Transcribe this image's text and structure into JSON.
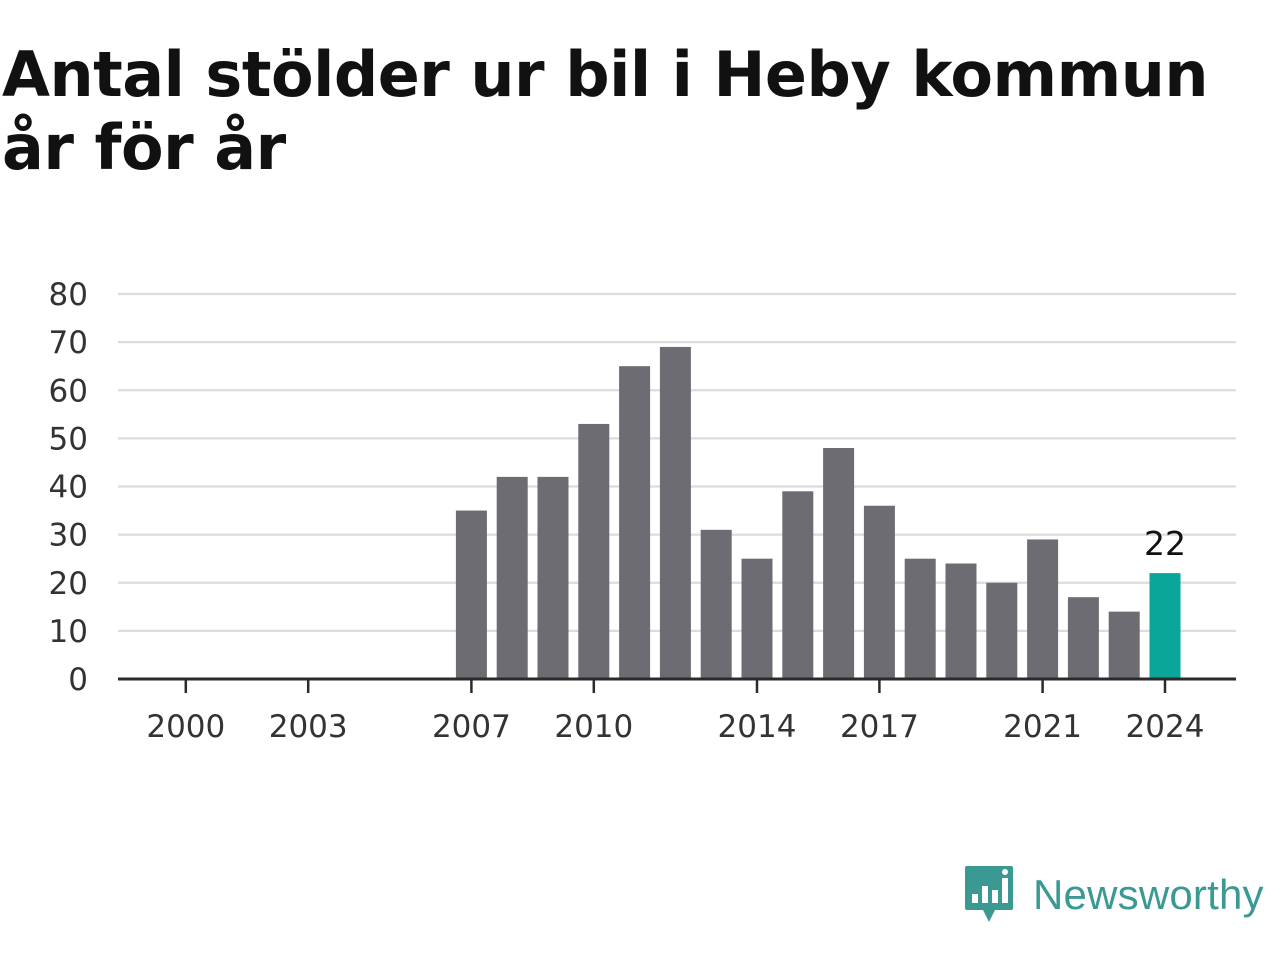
{
  "title": "Antal stölder ur bil i Heby kommun år för år",
  "brand": {
    "name": "Newsworthy",
    "icon": "newsworthy-logo-icon",
    "color": "#3a9a93"
  },
  "chart_data": {
    "type": "bar",
    "title": "Antal stölder ur bil i Heby kommun år för år",
    "xlabel": "",
    "ylabel": "",
    "x_range": [
      1999,
      2025
    ],
    "ylim": [
      0,
      80
    ],
    "y_ticks": [
      0,
      10,
      20,
      30,
      40,
      50,
      60,
      70,
      80
    ],
    "x_ticks": [
      2000,
      2003,
      2007,
      2010,
      2014,
      2017,
      2021,
      2024
    ],
    "grid": true,
    "legend": "none",
    "bar_color": "#6d6c72",
    "highlight_color": "#0aa69a",
    "highlight_year": 2024,
    "highlight_label": "22",
    "categories": [
      2007,
      2008,
      2009,
      2010,
      2011,
      2012,
      2013,
      2014,
      2015,
      2016,
      2017,
      2018,
      2019,
      2020,
      2021,
      2022,
      2023,
      2024
    ],
    "values": [
      35,
      42,
      42,
      53,
      65,
      69,
      31,
      25,
      39,
      48,
      36,
      25,
      24,
      20,
      29,
      17,
      14,
      22
    ]
  }
}
